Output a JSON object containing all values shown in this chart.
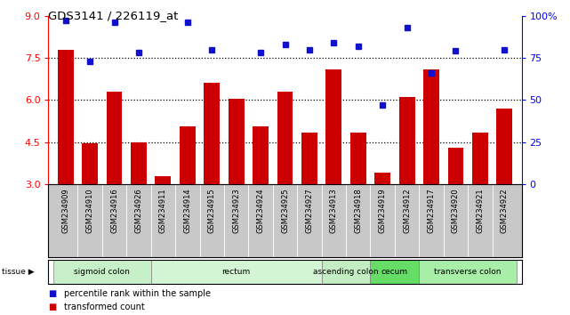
{
  "title": "GDS3141 / 226119_at",
  "samples": [
    "GSM234909",
    "GSM234910",
    "GSM234916",
    "GSM234926",
    "GSM234911",
    "GSM234914",
    "GSM234915",
    "GSM234923",
    "GSM234924",
    "GSM234925",
    "GSM234927",
    "GSM234913",
    "GSM234918",
    "GSM234919",
    "GSM234912",
    "GSM234917",
    "GSM234920",
    "GSM234921",
    "GSM234922"
  ],
  "bar_values": [
    7.8,
    4.45,
    6.3,
    4.5,
    3.3,
    5.05,
    6.6,
    6.05,
    5.05,
    6.3,
    4.85,
    7.1,
    4.85,
    3.4,
    6.1,
    7.1,
    4.3,
    4.85,
    5.7
  ],
  "dot_values": [
    97,
    73,
    96,
    78,
    null,
    96,
    80,
    null,
    78,
    83,
    80,
    84,
    82,
    47,
    93,
    66,
    79,
    null,
    80
  ],
  "bar_color": "#cc0000",
  "dot_color": "#1111cc",
  "tissue_groups": [
    {
      "label": "sigmoid colon",
      "start": 0,
      "end": 4,
      "color": "#c8f0c8"
    },
    {
      "label": "rectum",
      "start": 4,
      "end": 11,
      "color": "#d4f5d4"
    },
    {
      "label": "ascending colon",
      "start": 11,
      "end": 13,
      "color": "#c4edc4"
    },
    {
      "label": "cecum",
      "start": 13,
      "end": 15,
      "color": "#66dd66"
    },
    {
      "label": "transverse colon",
      "start": 15,
      "end": 19,
      "color": "#a8eda8"
    }
  ],
  "ylim_left": [
    3,
    9
  ],
  "yticks_left": [
    3,
    4.5,
    6,
    7.5,
    9
  ],
  "ylim_right": [
    0,
    100
  ],
  "yticks_right": [
    0,
    25,
    50,
    75,
    100
  ],
  "right_tick_labels": [
    "0",
    "25",
    "50",
    "75",
    "100%"
  ],
  "hlines": [
    4.5,
    6.0,
    7.5
  ],
  "bg_color": "#ffffff",
  "label_bg": "#c8c8c8"
}
